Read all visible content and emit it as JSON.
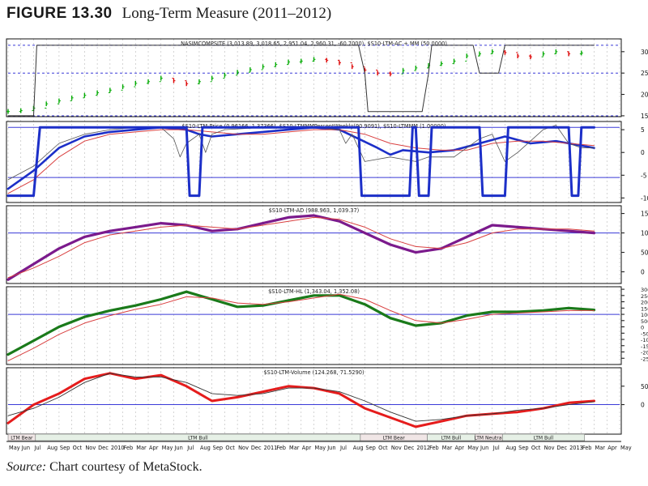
{
  "figure": {
    "number": "FIGURE 13.30",
    "caption": "Long-Term Measure (2011–2012)",
    "source_label": "Source:",
    "source_text": " Chart courtesy of MetaStock."
  },
  "colors": {
    "price_up": "#00aa00",
    "price_down": "#dd0000",
    "mm_line": "#e51c1c",
    "ltm_price": "#1c2fc8",
    "ltm_ad": "#7b1a8c",
    "ltm_hl": "#1a7a1a",
    "ltm_volume": "#e51c1c",
    "moving_average": "#d94040",
    "ref_line": "#3a3ad8",
    "grid": "#b8b8b8"
  },
  "chart_data": [
    {
      "type": "line",
      "label": "NASIMCOMPSITE (3,013.89, 3,018.65, 2,951.04, 2,960.31, -60.7000), $S10-LTM-AC + MM (50.0000)",
      "x_range": [
        0,
        92
      ],
      "ylim": [
        1480,
        3300
      ],
      "y_ticks": [
        "3000",
        "2500",
        "2000",
        "1500"
      ],
      "ref_lines": [
        3150,
        2500,
        1500
      ],
      "series": [
        {
          "name": "NASDAQ Composite",
          "style": "price_bars",
          "x": [
            0,
            2,
            4,
            6,
            8,
            10,
            12,
            14,
            16,
            18,
            20,
            22,
            24,
            26,
            28,
            30,
            32,
            34,
            36,
            38,
            40,
            42,
            44,
            46,
            48,
            50,
            52,
            54,
            56,
            58,
            60,
            62,
            64,
            66,
            68,
            70,
            72,
            74,
            76,
            78,
            80,
            82,
            84,
            86,
            88,
            90
          ],
          "values": [
            1600,
            1620,
            1680,
            1780,
            1850,
            1920,
            1980,
            2040,
            2100,
            2180,
            2260,
            2300,
            2380,
            2320,
            2250,
            2300,
            2380,
            2450,
            2520,
            2580,
            2650,
            2700,
            2760,
            2780,
            2820,
            2800,
            2740,
            2650,
            2570,
            2500,
            2480,
            2560,
            2620,
            2680,
            2720,
            2780,
            2900,
            2950,
            3000,
            2980,
            2900,
            2880,
            2950,
            3000,
            2950,
            2970
          ]
        },
        {
          "name": "MM (LTM-AC)",
          "style": "step",
          "x": [
            0,
            4,
            4.5,
            55,
            56,
            56.5,
            65,
            66,
            66.5,
            73,
            74,
            77,
            78,
            92
          ],
          "values": [
            1500,
            1500,
            3150,
            3150,
            2500,
            1600,
            1600,
            2500,
            3150,
            3150,
            2500,
            2500,
            3150,
            3150
          ]
        }
      ]
    },
    {
      "type": "line",
      "label": "$S10-LTM-Price (0.96166, 1.37366), $S10-LTMMMPercentWeekly(90.9091), $S10-LTMMM (1.00000)",
      "x_range": [
        0,
        92
      ],
      "ylim": [
        -11,
        6.8
      ],
      "y_ticks": [
        "5",
        "0",
        "-5",
        "-10"
      ],
      "ref_lines": [
        5.5,
        -5.5
      ],
      "series": [
        {
          "name": "LTM-Price",
          "x": [
            0,
            4,
            8,
            12,
            16,
            20,
            24,
            28,
            30,
            32,
            36,
            40,
            44,
            48,
            52,
            55,
            58,
            60,
            62,
            66,
            70,
            74,
            78,
            82,
            86,
            88,
            90,
            92
          ],
          "values": [
            -8,
            -4,
            1,
            3.5,
            4.5,
            5,
            5.5,
            5,
            4,
            3.5,
            4,
            4.5,
            5,
            5.5,
            5,
            3,
            1,
            -0.5,
            0.5,
            0,
            0.5,
            2,
            3.5,
            2,
            2.5,
            2,
            1.5,
            1
          ]
        },
        {
          "name": "LTM-Price MA",
          "x": [
            0,
            4,
            8,
            12,
            16,
            20,
            24,
            28,
            32,
            36,
            40,
            44,
            48,
            52,
            56,
            60,
            64,
            68,
            72,
            76,
            80,
            84,
            88,
            92
          ],
          "values": [
            -9,
            -6,
            -1,
            2.5,
            4,
            4.5,
            5,
            5,
            4.5,
            4,
            4,
            4.5,
            5,
            5,
            4,
            2,
            1,
            0.5,
            0.5,
            2,
            2.5,
            2.5,
            2,
            1.5
          ]
        },
        {
          "name": "LTMMM Percent Weekly",
          "x": [
            0,
            4,
            8,
            12,
            16,
            20,
            24,
            26,
            27,
            28,
            30,
            31,
            32,
            34,
            40,
            48,
            52,
            53,
            54,
            55,
            56,
            60,
            64,
            66,
            70,
            74,
            76,
            77,
            78,
            80,
            84,
            86,
            88,
            90,
            92
          ],
          "values": [
            -6,
            -3,
            2,
            4,
            5,
            5.5,
            5.5,
            3,
            -1,
            2,
            4,
            0,
            4,
            5,
            5.5,
            5.5,
            5,
            2,
            4,
            1,
            -2,
            -1,
            -2,
            -1,
            -1,
            3,
            4,
            1,
            -2,
            0,
            5,
            6,
            2,
            1,
            1
          ]
        },
        {
          "name": "LTMMM",
          "style": "step",
          "x": [
            0,
            4,
            5,
            28,
            28.5,
            30,
            30.5,
            55,
            55.5,
            63,
            63.5,
            64,
            64.5,
            66,
            66.5,
            74,
            74.5,
            78,
            78.5,
            88,
            88.5,
            89.5,
            90,
            92
          ],
          "values": [
            -9.5,
            -9.5,
            5.5,
            5.5,
            -9.5,
            -9.5,
            5.5,
            5.5,
            -9.5,
            -9.5,
            5.5,
            5.5,
            -9.5,
            -9.5,
            5.5,
            5.5,
            -9.5,
            -9.5,
            5.5,
            5.5,
            -9.5,
            -9.5,
            5.5,
            5.5
          ]
        }
      ]
    },
    {
      "type": "line",
      "label": "$S10-LTM-AD (988.963, 1,039.37)",
      "x_range": [
        0,
        92
      ],
      "ylim": [
        -300,
        1700
      ],
      "y_ticks": [
        "1500",
        "1000",
        "500",
        "0"
      ],
      "ref_lines": [
        1000
      ],
      "series": [
        {
          "name": "LTM-AD",
          "x": [
            0,
            4,
            8,
            12,
            16,
            20,
            24,
            28,
            32,
            36,
            40,
            44,
            48,
            52,
            56,
            60,
            64,
            68,
            72,
            76,
            80,
            84,
            88,
            92
          ],
          "values": [
            -200,
            200,
            600,
            900,
            1050,
            1150,
            1250,
            1200,
            1050,
            1100,
            1250,
            1400,
            1450,
            1300,
            1000,
            700,
            500,
            600,
            900,
            1200,
            1150,
            1100,
            1050,
            1000
          ]
        },
        {
          "name": "LTM-AD MA",
          "x": [
            0,
            4,
            8,
            12,
            16,
            20,
            24,
            28,
            32,
            36,
            40,
            44,
            48,
            52,
            56,
            60,
            64,
            68,
            72,
            76,
            80,
            84,
            88,
            92
          ],
          "values": [
            -150,
            100,
            400,
            750,
            950,
            1050,
            1150,
            1200,
            1150,
            1100,
            1200,
            1300,
            1400,
            1350,
            1150,
            850,
            650,
            600,
            750,
            1000,
            1100,
            1100,
            1100,
            1050
          ]
        }
      ]
    },
    {
      "type": "line",
      "label": "$S10-LTM-HL (1,343.04, 1,352.08)",
      "x_range": [
        0,
        92
      ],
      "ylim": [
        -3000,
        3200
      ],
      "y_ticks": [
        "3000",
        "2500",
        "2000",
        "1500",
        "1000",
        "500",
        "0",
        "-500",
        "-1000",
        "-1500",
        "-2000",
        "-2500"
      ],
      "ref_lines": [
        1000
      ],
      "series": [
        {
          "name": "LTM-HL",
          "x": [
            0,
            4,
            8,
            12,
            16,
            20,
            24,
            28,
            32,
            36,
            40,
            44,
            48,
            52,
            56,
            60,
            64,
            68,
            72,
            76,
            80,
            84,
            88,
            92
          ],
          "values": [
            -2200,
            -1100,
            0,
            800,
            1300,
            1700,
            2200,
            2800,
            2200,
            1600,
            1700,
            2100,
            2500,
            2500,
            1800,
            700,
            100,
            300,
            900,
            1200,
            1200,
            1300,
            1500,
            1350
          ]
        },
        {
          "name": "LTM-HL MA",
          "x": [
            0,
            4,
            8,
            12,
            16,
            20,
            24,
            28,
            32,
            36,
            40,
            44,
            48,
            52,
            56,
            60,
            64,
            68,
            72,
            76,
            80,
            84,
            88,
            92
          ],
          "values": [
            -2700,
            -1700,
            -600,
            300,
            900,
            1400,
            1800,
            2400,
            2300,
            1900,
            1800,
            2000,
            2300,
            2600,
            2200,
            1300,
            500,
            300,
            600,
            1000,
            1100,
            1200,
            1300,
            1300
          ]
        }
      ]
    },
    {
      "type": "line",
      "label": "$S10-LTM-Volume (124.268, 71.5290)",
      "x_range": [
        0,
        92
      ],
      "ylim": [
        -800,
        1000
      ],
      "y_ticks": [
        "500",
        "0"
      ],
      "ref_lines": [
        0
      ],
      "series": [
        {
          "name": "LTM-Volume",
          "x": [
            0,
            4,
            8,
            12,
            16,
            20,
            24,
            28,
            32,
            36,
            40,
            44,
            48,
            52,
            56,
            60,
            64,
            68,
            72,
            76,
            80,
            84,
            88,
            92
          ],
          "values": [
            -500,
            0,
            300,
            700,
            850,
            700,
            800,
            500,
            100,
            200,
            350,
            500,
            450,
            300,
            -100,
            -350,
            -600,
            -450,
            -300,
            -250,
            -200,
            -100,
            50,
            100
          ]
        },
        {
          "name": "LTM-Volume MA",
          "x": [
            0,
            4,
            8,
            12,
            16,
            20,
            24,
            28,
            32,
            36,
            40,
            44,
            48,
            52,
            56,
            60,
            64,
            68,
            72,
            76,
            80,
            84,
            88,
            92
          ],
          "values": [
            -300,
            -100,
            200,
            600,
            850,
            750,
            750,
            600,
            300,
            250,
            300,
            450,
            450,
            350,
            100,
            -200,
            -450,
            -400,
            -300,
            -250,
            -150,
            -100,
            0,
            80
          ]
        }
      ]
    }
  ],
  "regimes": [
    {
      "label": "LTM Bear",
      "x": [
        0,
        4.3
      ]
    },
    {
      "label": "LTM Bull",
      "x": [
        4.3,
        55.3
      ]
    },
    {
      "label": "LTM Bear",
      "x": [
        55.3,
        65.8
      ]
    },
    {
      "label": "LTM Bull",
      "x": [
        65.8,
        73.3
      ]
    },
    {
      "label": "LTM Neutral",
      "x": [
        73.3,
        77.6
      ]
    },
    {
      "label": "LTM Bull",
      "x": [
        77.6,
        90.5
      ]
    }
  ],
  "x_axis": {
    "labels": [
      "May",
      "Jun",
      "Jul",
      "Aug",
      "Sep",
      "Oct",
      "Nov",
      "Dec",
      "2010",
      "Feb",
      "Mar",
      "Apr",
      "May",
      "Jun",
      "Jul",
      "Aug",
      "Sep",
      "Oct",
      "Nov",
      "Dec",
      "2011",
      "Feb",
      "Mar",
      "Apr",
      "May",
      "Jun",
      "Jul",
      "Aug",
      "Sep",
      "Oct",
      "Nov",
      "Dec",
      "2012",
      "Feb",
      "Mar",
      "Apr",
      "May",
      "Jun",
      "Jul",
      "Aug",
      "Sep",
      "Oct",
      "Nov",
      "Dec",
      "2013",
      "Feb",
      "Mar",
      "Apr",
      "May"
    ],
    "label_positions": [
      0,
      2,
      4,
      6,
      8,
      10,
      12,
      14,
      16,
      18,
      20,
      22,
      24,
      26,
      28,
      30,
      32,
      34,
      36,
      38,
      40,
      42,
      44,
      46,
      48,
      50,
      52,
      54,
      56,
      58,
      60,
      62,
      64,
      66,
      68,
      70,
      72,
      74,
      76,
      78,
      80,
      82,
      84,
      86,
      88,
      90,
      92,
      94,
      96
    ],
    "limit": 96
  }
}
